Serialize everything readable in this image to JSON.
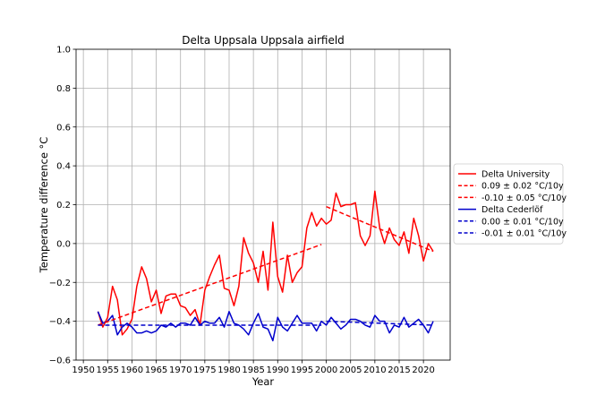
{
  "chart_data": {
    "type": "line",
    "title": "Delta Uppsala Uppsala airfield",
    "xlabel": "Year",
    "ylabel": "Temperature difference °C",
    "xlim": [
      1948.5,
      2025.5
    ],
    "ylim": [
      -0.6,
      1.0
    ],
    "xticks": [
      1950,
      1955,
      1960,
      1965,
      1970,
      1975,
      1980,
      1985,
      1990,
      1995,
      2000,
      2005,
      2010,
      2015,
      2020
    ],
    "xtick_labels": [
      "1950",
      "1955",
      "1960",
      "1965",
      "1970",
      "1975",
      "1980",
      "1985",
      "1990",
      "1995",
      "2000",
      "2005",
      "2010",
      "2015",
      "2020"
    ],
    "yticks": [
      -0.6,
      -0.4,
      -0.2,
      0.0,
      0.2,
      0.4,
      0.6,
      0.8,
      1.0
    ],
    "ytick_labels": [
      "−0.6",
      "−0.4",
      "−0.2",
      "0.0",
      "0.2",
      "0.4",
      "0.6",
      "0.8",
      "1.0"
    ],
    "grid": true,
    "legend_placement": "outside-right",
    "x": [
      1953,
      1954,
      1955,
      1956,
      1957,
      1958,
      1959,
      1960,
      1961,
      1962,
      1963,
      1964,
      1965,
      1966,
      1967,
      1968,
      1969,
      1970,
      1971,
      1972,
      1973,
      1974,
      1975,
      1976,
      1977,
      1978,
      1979,
      1980,
      1981,
      1982,
      1983,
      1984,
      1985,
      1986,
      1987,
      1988,
      1989,
      1990,
      1991,
      1992,
      1993,
      1994,
      1995,
      1996,
      1997,
      1998,
      1999,
      2000,
      2001,
      2002,
      2003,
      2004,
      2005,
      2006,
      2007,
      2008,
      2009,
      2010,
      2011,
      2012,
      2013,
      2014,
      2015,
      2016,
      2017,
      2018,
      2019,
      2020,
      2021,
      2022
    ],
    "series": [
      {
        "name": "Delta University",
        "color": "#ff0000",
        "style": "solid",
        "values": [
          -0.35,
          -0.43,
          -0.38,
          -0.22,
          -0.29,
          -0.47,
          -0.44,
          -0.39,
          -0.22,
          -0.12,
          -0.18,
          -0.3,
          -0.24,
          -0.36,
          -0.27,
          -0.26,
          -0.26,
          -0.32,
          -0.33,
          -0.37,
          -0.34,
          -0.42,
          -0.24,
          -0.17,
          -0.11,
          -0.06,
          -0.23,
          -0.24,
          -0.32,
          -0.22,
          0.03,
          -0.05,
          -0.1,
          -0.2,
          -0.04,
          -0.24,
          0.11,
          -0.17,
          -0.25,
          -0.06,
          -0.2,
          -0.15,
          -0.12,
          0.08,
          0.16,
          0.09,
          0.13,
          0.1,
          0.12,
          0.26,
          0.19,
          0.2,
          0.2,
          0.21,
          0.04,
          -0.01,
          0.04,
          0.27,
          0.08,
          0.0,
          0.08,
          0.02,
          -0.01,
          0.06,
          -0.05,
          0.13,
          0.04,
          -0.09,
          0.0,
          -0.04
        ]
      },
      {
        "name": "Delta Cederlöf",
        "color": "#0000cc",
        "style": "solid",
        "values": [
          -0.35,
          -0.41,
          -0.4,
          -0.37,
          -0.47,
          -0.43,
          -0.41,
          -0.43,
          -0.46,
          -0.46,
          -0.45,
          -0.46,
          -0.45,
          -0.42,
          -0.43,
          -0.41,
          -0.43,
          -0.41,
          -0.41,
          -0.42,
          -0.38,
          -0.42,
          -0.4,
          -0.41,
          -0.41,
          -0.38,
          -0.43,
          -0.35,
          -0.41,
          -0.42,
          -0.44,
          -0.47,
          -0.41,
          -0.36,
          -0.43,
          -0.44,
          -0.5,
          -0.38,
          -0.43,
          -0.45,
          -0.41,
          -0.37,
          -0.41,
          -0.41,
          -0.41,
          -0.45,
          -0.4,
          -0.42,
          -0.38,
          -0.41,
          -0.44,
          -0.42,
          -0.39,
          -0.39,
          -0.4,
          -0.42,
          -0.43,
          -0.37,
          -0.4,
          -0.4,
          -0.46,
          -0.42,
          -0.43,
          -0.38,
          -0.43,
          -0.41,
          -0.39,
          -0.42,
          -0.46,
          -0.4
        ]
      }
    ],
    "trends": [
      {
        "name": "0.09 ± 0.02 °C/10y",
        "color": "#ff0000",
        "style": "dashed",
        "x": [
          1953,
          1999
        ],
        "y": [
          -0.42,
          -0.005
        ]
      },
      {
        "name": "-0.10 ± 0.05 °C/10y",
        "color": "#ff0000",
        "style": "dashed",
        "x": [
          2000,
          2022
        ],
        "y": [
          0.19,
          -0.04
        ]
      },
      {
        "name": "0.00 ± 0.01 °C/10y",
        "color": "#0000cc",
        "style": "dashed",
        "x": [
          1953,
          1999
        ],
        "y": [
          -0.42,
          -0.42
        ]
      },
      {
        "name": "-0.01 ± 0.01 °C/10y",
        "color": "#0000cc",
        "style": "dashed",
        "x": [
          2000,
          2022
        ],
        "y": [
          -0.4,
          -0.42
        ]
      }
    ],
    "legend": [
      {
        "label": "Delta University",
        "color": "#ff0000",
        "style": "solid"
      },
      {
        "label": "0.09 ± 0.02 °C/10y",
        "color": "#ff0000",
        "style": "dashed"
      },
      {
        "label": "-0.10 ± 0.05 °C/10y",
        "color": "#ff0000",
        "style": "dashed"
      },
      {
        "label": "Delta Cederlöf",
        "color": "#0000cc",
        "style": "solid"
      },
      {
        "label": "0.00 ± 0.01 °C/10y",
        "color": "#0000cc",
        "style": "dashed"
      },
      {
        "label": "-0.01 ± 0.01 °C/10y",
        "color": "#0000cc",
        "style": "dashed"
      }
    ]
  }
}
